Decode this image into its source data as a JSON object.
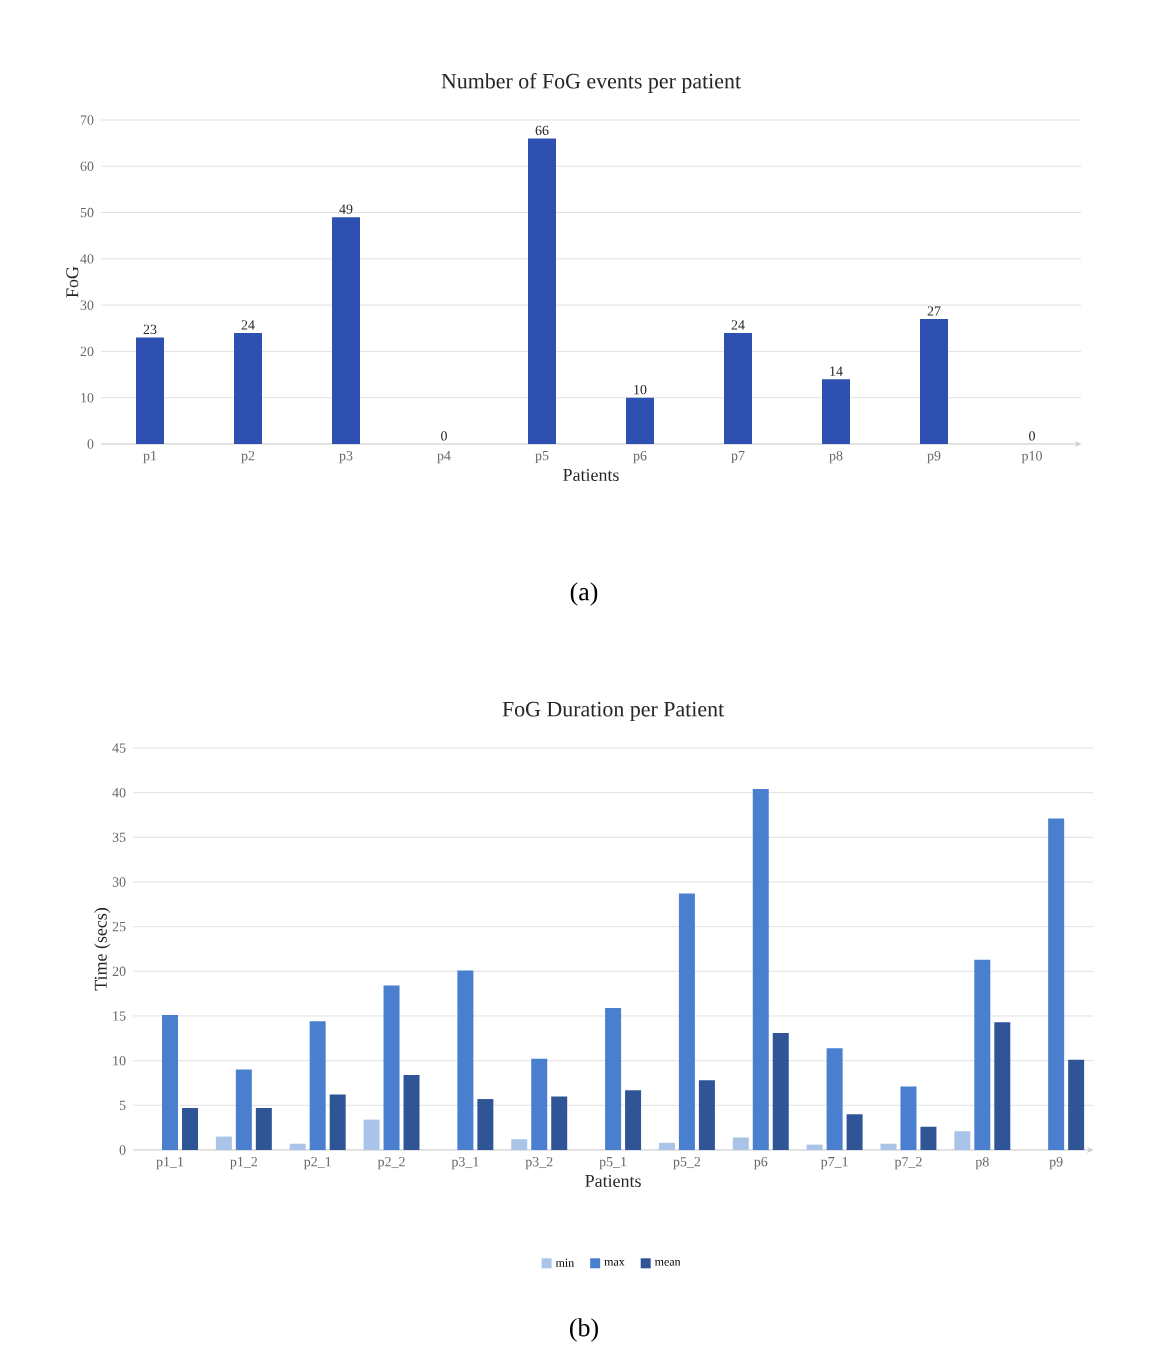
{
  "chart_data": [
    {
      "type": "bar",
      "title": "Number of FoG events per patient",
      "xlabel": "Patients",
      "ylabel": "FoG",
      "categories": [
        "p1",
        "p2",
        "p3",
        "p4",
        "p5",
        "p6",
        "p7",
        "p8",
        "p9",
        "p10"
      ],
      "values": [
        23,
        24,
        49,
        0,
        66,
        10,
        24,
        14,
        27,
        0
      ],
      "color": "#2e50b0",
      "ylim": [
        0,
        70
      ],
      "yticks": [
        0,
        10,
        20,
        30,
        40,
        50,
        60,
        70
      ],
      "grid": "y",
      "data_labels": true,
      "annotations": [
        "(a)"
      ]
    },
    {
      "type": "bar",
      "title": "FoG Duration per Patient",
      "xlabel": "Patients",
      "ylabel": "Time (secs)",
      "categories": [
        "p1_1",
        "p1_2",
        "p2_1",
        "p2_2",
        "p3_1",
        "p3_2",
        "p5_1",
        "p5_2",
        "p6",
        "p7_1",
        "p7_2",
        "p8",
        "p9"
      ],
      "series": [
        {
          "name": "min",
          "color": "#a9c4e8",
          "values": [
            null,
            1.5,
            0.7,
            3.4,
            null,
            1.2,
            null,
            0.8,
            1.4,
            0.6,
            0.7,
            2.1,
            null
          ]
        },
        {
          "name": "max",
          "color": "#4a7fd0",
          "values": [
            15.1,
            9,
            14.4,
            18.4,
            20.1,
            10.2,
            15.9,
            28.7,
            40.4,
            11.4,
            7.1,
            21.3,
            37.1
          ]
        },
        {
          "name": "mean",
          "color": "#2f5597",
          "values": [
            4.7,
            4.7,
            6.2,
            8.4,
            5.7,
            6.0,
            6.7,
            7.8,
            13.1,
            4.0,
            2.6,
            14.3,
            10.1
          ]
        }
      ],
      "ylim": [
        0,
        45
      ],
      "yticks": [
        0,
        5,
        10,
        15,
        20,
        25,
        30,
        35,
        40,
        45
      ],
      "grid": "y",
      "legend": "bottom",
      "annotations": [
        "(b)"
      ]
    }
  ]
}
